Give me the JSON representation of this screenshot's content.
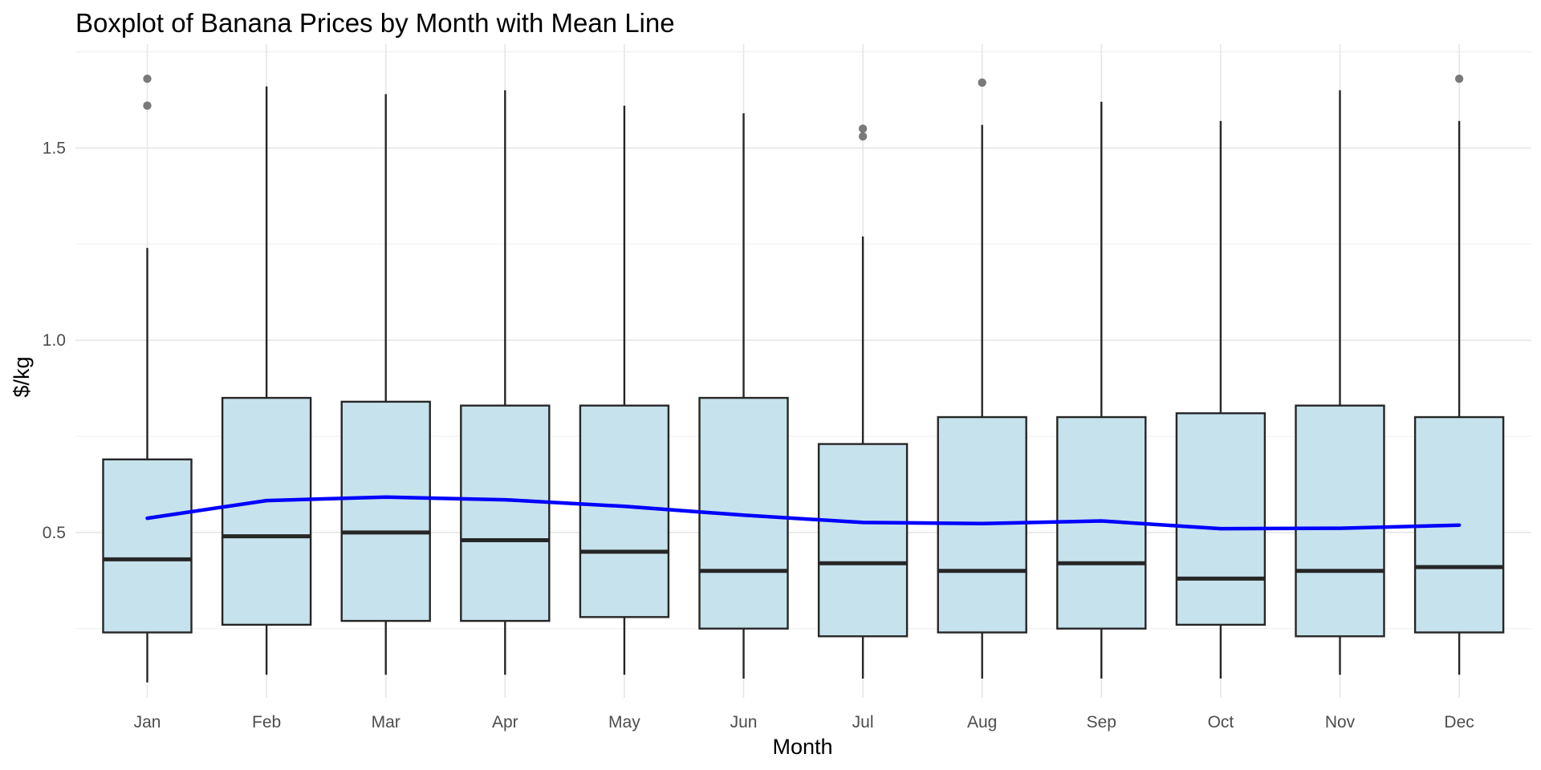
{
  "chart_data": {
    "type": "boxplot",
    "title": "Boxplot of Banana Prices by Month with Mean Line",
    "xlabel": "Month",
    "ylabel": "$/kg",
    "ylim": [
      0.07,
      1.77
    ],
    "yticks": [
      0.5,
      1.0,
      1.5
    ],
    "ytick_labels": [
      "0.5",
      "1.0",
      "1.5"
    ],
    "grid": true,
    "categories": [
      "Jan",
      "Feb",
      "Mar",
      "Apr",
      "May",
      "Jun",
      "Jul",
      "Aug",
      "Sep",
      "Oct",
      "Nov",
      "Dec"
    ],
    "boxes": [
      {
        "month": "Jan",
        "whisker_low": 0.11,
        "q1": 0.24,
        "median": 0.43,
        "q3": 0.69,
        "whisker_high": 1.24,
        "outliers": [
          1.61,
          1.68
        ]
      },
      {
        "month": "Feb",
        "whisker_low": 0.13,
        "q1": 0.26,
        "median": 0.49,
        "q3": 0.85,
        "whisker_high": 1.66,
        "outliers": []
      },
      {
        "month": "Mar",
        "whisker_low": 0.13,
        "q1": 0.27,
        "median": 0.5,
        "q3": 0.84,
        "whisker_high": 1.64,
        "outliers": []
      },
      {
        "month": "Apr",
        "whisker_low": 0.13,
        "q1": 0.27,
        "median": 0.48,
        "q3": 0.83,
        "whisker_high": 1.65,
        "outliers": []
      },
      {
        "month": "May",
        "whisker_low": 0.13,
        "q1": 0.28,
        "median": 0.45,
        "q3": 0.83,
        "whisker_high": 1.61,
        "outliers": []
      },
      {
        "month": "Jun",
        "whisker_low": 0.12,
        "q1": 0.25,
        "median": 0.4,
        "q3": 0.85,
        "whisker_high": 1.59,
        "outliers": []
      },
      {
        "month": "Jul",
        "whisker_low": 0.12,
        "q1": 0.23,
        "median": 0.42,
        "q3": 0.73,
        "whisker_high": 1.27,
        "outliers": [
          1.53,
          1.55
        ]
      },
      {
        "month": "Aug",
        "whisker_low": 0.12,
        "q1": 0.24,
        "median": 0.4,
        "q3": 0.8,
        "whisker_high": 1.56,
        "outliers": [
          1.67
        ]
      },
      {
        "month": "Sep",
        "whisker_low": 0.12,
        "q1": 0.25,
        "median": 0.42,
        "q3": 0.8,
        "whisker_high": 1.62,
        "outliers": []
      },
      {
        "month": "Oct",
        "whisker_low": 0.12,
        "q1": 0.26,
        "median": 0.38,
        "q3": 0.81,
        "whisker_high": 1.57,
        "outliers": []
      },
      {
        "month": "Nov",
        "whisker_low": 0.13,
        "q1": 0.23,
        "median": 0.4,
        "q3": 0.83,
        "whisker_high": 1.65,
        "outliers": []
      },
      {
        "month": "Dec",
        "whisker_low": 0.13,
        "q1": 0.24,
        "median": 0.41,
        "q3": 0.8,
        "whisker_high": 1.57,
        "outliers": [
          1.68
        ]
      }
    ],
    "mean_line": {
      "values": [
        0.537,
        0.583,
        0.592,
        0.585,
        0.568,
        0.545,
        0.526,
        0.523,
        0.53,
        0.51,
        0.511,
        0.519
      ]
    },
    "colors": {
      "box_fill": "#c6e2ec",
      "box_stroke": "#262626",
      "median": "#262626",
      "whisker": "#262626",
      "outlier": "#6b6b6b",
      "mean_line": "#0000ff",
      "grid": "#e6e6e6"
    }
  }
}
